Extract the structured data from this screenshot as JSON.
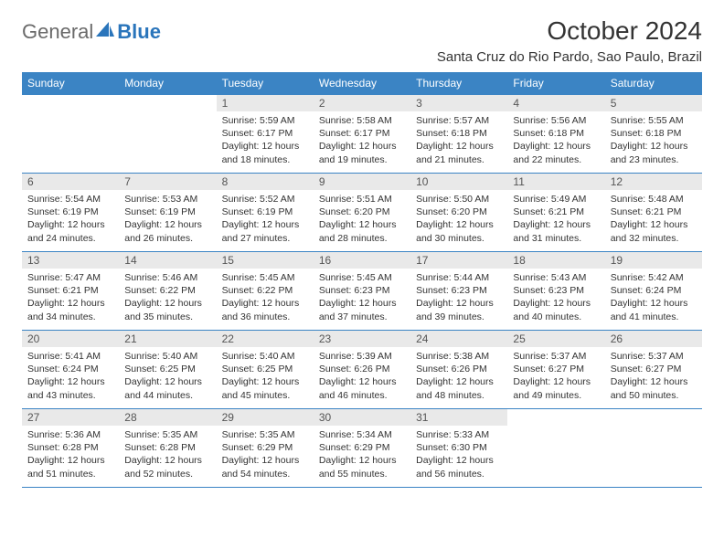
{
  "brand": {
    "part1": "General",
    "part2": "Blue"
  },
  "title": "October 2024",
  "location": "Santa Cruz do Rio Pardo, Sao Paulo, Brazil",
  "colors": {
    "header_bg": "#3b84c4",
    "header_fg": "#ffffff",
    "daynum_bg": "#e9e9e9",
    "border": "#3b84c4",
    "brand_grey": "#6a6a6a",
    "brand_blue": "#2a75bb"
  },
  "weekdays": [
    "Sunday",
    "Monday",
    "Tuesday",
    "Wednesday",
    "Thursday",
    "Friday",
    "Saturday"
  ],
  "leading_blanks": 2,
  "days": [
    {
      "n": 1,
      "sunrise": "5:59 AM",
      "sunset": "6:17 PM",
      "daylight": "12 hours and 18 minutes."
    },
    {
      "n": 2,
      "sunrise": "5:58 AM",
      "sunset": "6:17 PM",
      "daylight": "12 hours and 19 minutes."
    },
    {
      "n": 3,
      "sunrise": "5:57 AM",
      "sunset": "6:18 PM",
      "daylight": "12 hours and 21 minutes."
    },
    {
      "n": 4,
      "sunrise": "5:56 AM",
      "sunset": "6:18 PM",
      "daylight": "12 hours and 22 minutes."
    },
    {
      "n": 5,
      "sunrise": "5:55 AM",
      "sunset": "6:18 PM",
      "daylight": "12 hours and 23 minutes."
    },
    {
      "n": 6,
      "sunrise": "5:54 AM",
      "sunset": "6:19 PM",
      "daylight": "12 hours and 24 minutes."
    },
    {
      "n": 7,
      "sunrise": "5:53 AM",
      "sunset": "6:19 PM",
      "daylight": "12 hours and 26 minutes."
    },
    {
      "n": 8,
      "sunrise": "5:52 AM",
      "sunset": "6:19 PM",
      "daylight": "12 hours and 27 minutes."
    },
    {
      "n": 9,
      "sunrise": "5:51 AM",
      "sunset": "6:20 PM",
      "daylight": "12 hours and 28 minutes."
    },
    {
      "n": 10,
      "sunrise": "5:50 AM",
      "sunset": "6:20 PM",
      "daylight": "12 hours and 30 minutes."
    },
    {
      "n": 11,
      "sunrise": "5:49 AM",
      "sunset": "6:21 PM",
      "daylight": "12 hours and 31 minutes."
    },
    {
      "n": 12,
      "sunrise": "5:48 AM",
      "sunset": "6:21 PM",
      "daylight": "12 hours and 32 minutes."
    },
    {
      "n": 13,
      "sunrise": "5:47 AM",
      "sunset": "6:21 PM",
      "daylight": "12 hours and 34 minutes."
    },
    {
      "n": 14,
      "sunrise": "5:46 AM",
      "sunset": "6:22 PM",
      "daylight": "12 hours and 35 minutes."
    },
    {
      "n": 15,
      "sunrise": "5:45 AM",
      "sunset": "6:22 PM",
      "daylight": "12 hours and 36 minutes."
    },
    {
      "n": 16,
      "sunrise": "5:45 AM",
      "sunset": "6:23 PM",
      "daylight": "12 hours and 37 minutes."
    },
    {
      "n": 17,
      "sunrise": "5:44 AM",
      "sunset": "6:23 PM",
      "daylight": "12 hours and 39 minutes."
    },
    {
      "n": 18,
      "sunrise": "5:43 AM",
      "sunset": "6:23 PM",
      "daylight": "12 hours and 40 minutes."
    },
    {
      "n": 19,
      "sunrise": "5:42 AM",
      "sunset": "6:24 PM",
      "daylight": "12 hours and 41 minutes."
    },
    {
      "n": 20,
      "sunrise": "5:41 AM",
      "sunset": "6:24 PM",
      "daylight": "12 hours and 43 minutes."
    },
    {
      "n": 21,
      "sunrise": "5:40 AM",
      "sunset": "6:25 PM",
      "daylight": "12 hours and 44 minutes."
    },
    {
      "n": 22,
      "sunrise": "5:40 AM",
      "sunset": "6:25 PM",
      "daylight": "12 hours and 45 minutes."
    },
    {
      "n": 23,
      "sunrise": "5:39 AM",
      "sunset": "6:26 PM",
      "daylight": "12 hours and 46 minutes."
    },
    {
      "n": 24,
      "sunrise": "5:38 AM",
      "sunset": "6:26 PM",
      "daylight": "12 hours and 48 minutes."
    },
    {
      "n": 25,
      "sunrise": "5:37 AM",
      "sunset": "6:27 PM",
      "daylight": "12 hours and 49 minutes."
    },
    {
      "n": 26,
      "sunrise": "5:37 AM",
      "sunset": "6:27 PM",
      "daylight": "12 hours and 50 minutes."
    },
    {
      "n": 27,
      "sunrise": "5:36 AM",
      "sunset": "6:28 PM",
      "daylight": "12 hours and 51 minutes."
    },
    {
      "n": 28,
      "sunrise": "5:35 AM",
      "sunset": "6:28 PM",
      "daylight": "12 hours and 52 minutes."
    },
    {
      "n": 29,
      "sunrise": "5:35 AM",
      "sunset": "6:29 PM",
      "daylight": "12 hours and 54 minutes."
    },
    {
      "n": 30,
      "sunrise": "5:34 AM",
      "sunset": "6:29 PM",
      "daylight": "12 hours and 55 minutes."
    },
    {
      "n": 31,
      "sunrise": "5:33 AM",
      "sunset": "6:30 PM",
      "daylight": "12 hours and 56 minutes."
    }
  ],
  "labels": {
    "sunrise": "Sunrise:",
    "sunset": "Sunset:",
    "daylight": "Daylight:"
  }
}
